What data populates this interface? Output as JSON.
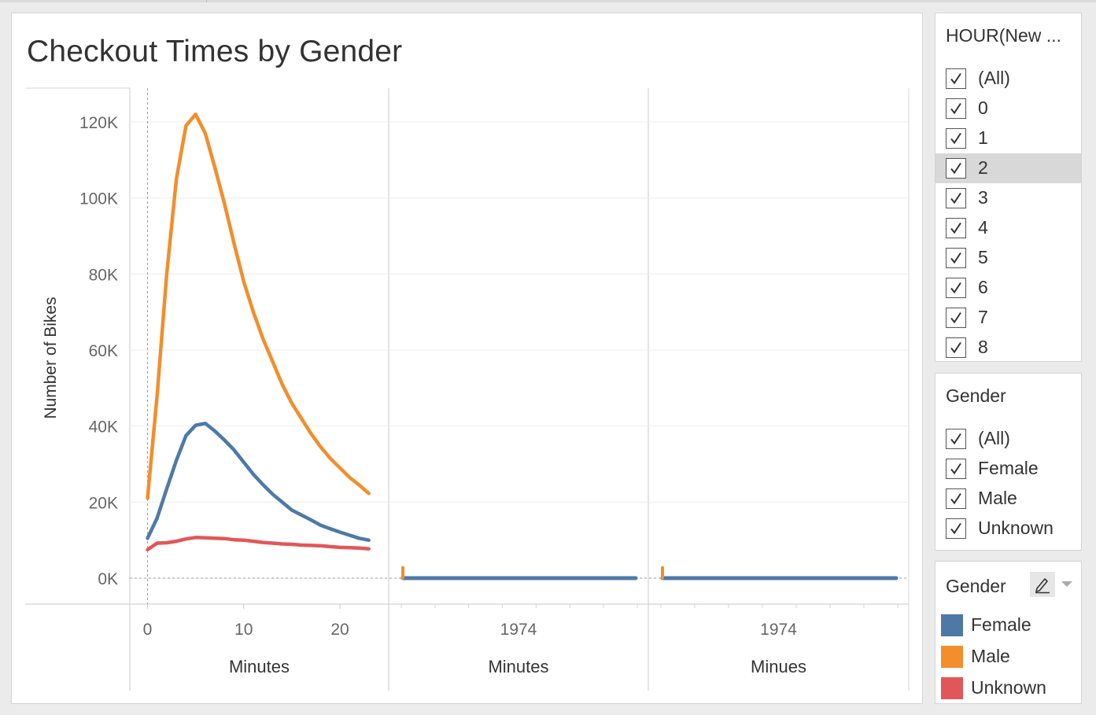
{
  "chart_data": {
    "type": "line",
    "title": "Checkout Times by Gender",
    "ylabel": "Number of Bikes",
    "ylim": [
      0,
      126000
    ],
    "y_ticks": [
      0,
      20000,
      40000,
      60000,
      80000,
      100000,
      120000
    ],
    "y_tick_labels": [
      "0K",
      "20K",
      "40K",
      "60K",
      "80K",
      "100K",
      "120K"
    ],
    "grid": true,
    "panels": [
      {
        "xlabel": "Minutes",
        "xlim": [
          -1.5,
          25.4
        ],
        "x_ticks": [
          0,
          10,
          20
        ],
        "x_tick_labels": [
          "0",
          "10",
          "20"
        ],
        "x": [
          0,
          1,
          2,
          3,
          4,
          5,
          6,
          7,
          8,
          9,
          10,
          11,
          12,
          13,
          14,
          15,
          16,
          17,
          18,
          19,
          20,
          21,
          22,
          23
        ],
        "series": [
          {
            "name": "Female",
            "values": [
              10500,
              15800,
              23500,
              31000,
              37500,
              40200,
              40700,
              38700,
              36300,
              33700,
              30500,
              27300,
              24600,
              22100,
              20000,
              17900,
              16600,
              15300,
              13900,
              13000,
              12100,
              11300,
              10500,
              10000
            ]
          },
          {
            "name": "Male",
            "values": [
              21000,
              48000,
              80000,
              105000,
              119000,
              122000,
              117000,
              108000,
              98500,
              88000,
              78000,
              70000,
              63000,
              57000,
              51000,
              46000,
              42000,
              38000,
              34500,
              31500,
              29000,
              26500,
              24500,
              22300
            ]
          },
          {
            "name": "Unknown",
            "values": [
              7500,
              9200,
              9300,
              9700,
              10300,
              10700,
              10600,
              10500,
              10400,
              10100,
              10000,
              9700,
              9400,
              9200,
              9000,
              8900,
              8700,
              8600,
              8500,
              8300,
              8100,
              8000,
              7900,
              7700
            ]
          }
        ]
      },
      {
        "xlabel": "Minutes",
        "x_ticks": [
          1974
        ],
        "x_tick_labels": [
          "1974"
        ],
        "series": [
          {
            "name": "Female",
            "values": [
              0
            ]
          },
          {
            "name": "Male",
            "values": [
              1500
            ]
          }
        ]
      },
      {
        "xlabel": "Minues",
        "x_ticks": [
          1974
        ],
        "x_tick_labels": [
          "1974"
        ],
        "series": [
          {
            "name": "Female",
            "values": [
              0
            ]
          },
          {
            "name": "Male",
            "values": [
              1500
            ]
          }
        ]
      }
    ],
    "colors": {
      "Female": "#4e79a7",
      "Male": "#f28e2b",
      "Unknown": "#e15759"
    }
  },
  "filters": {
    "hour": {
      "title": "HOUR(New ...",
      "items": [
        "(All)",
        "0",
        "1",
        "2",
        "3",
        "4",
        "5",
        "6",
        "7",
        "8"
      ],
      "highlighted": "2"
    },
    "gender": {
      "title": "Gender",
      "items": [
        "(All)",
        "Female",
        "Male",
        "Unknown"
      ]
    }
  },
  "legend": {
    "title": "Gender",
    "items": [
      {
        "label": "Female",
        "color": "#4e79a7"
      },
      {
        "label": "Male",
        "color": "#f28e2b"
      },
      {
        "label": "Unknown",
        "color": "#e15759"
      }
    ],
    "tools": [
      "pen-icon",
      "chevron-down-icon"
    ]
  }
}
